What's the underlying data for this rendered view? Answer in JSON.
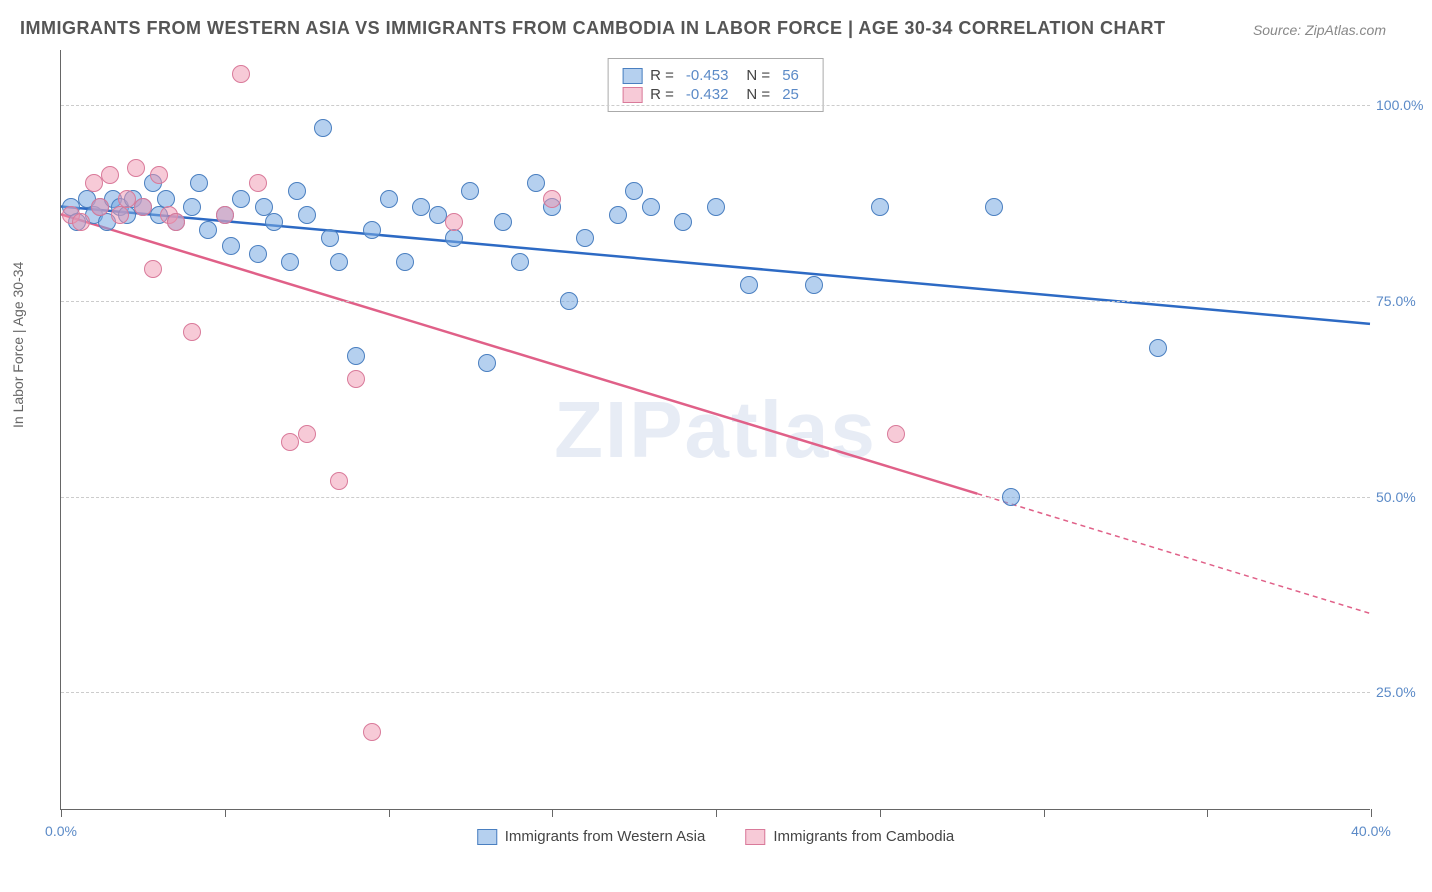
{
  "title": "IMMIGRANTS FROM WESTERN ASIA VS IMMIGRANTS FROM CAMBODIA IN LABOR FORCE | AGE 30-34 CORRELATION CHART",
  "source": "Source: ZipAtlas.com",
  "ylabel": "In Labor Force | Age 30-34",
  "watermark": "ZIPatlas",
  "chart": {
    "type": "scatter",
    "xlim": [
      0,
      40
    ],
    "ylim": [
      10,
      107
    ],
    "background_color": "#ffffff",
    "grid_color": "#cccccc",
    "x_ticks": [
      0,
      5,
      10,
      15,
      20,
      25,
      30,
      35,
      40
    ],
    "x_tick_labels": {
      "0": "0.0%",
      "40": "40.0%"
    },
    "y_grid": [
      25,
      50,
      75,
      100
    ],
    "y_tick_labels": {
      "25": "25.0%",
      "50": "50.0%",
      "75": "75.0%",
      "100": "100.0%"
    },
    "series": [
      {
        "name": "Immigrants from Western Asia",
        "fill_color": "rgba(120,170,225,0.55)",
        "stroke_color": "#4a7fc0",
        "line_color": "#2d6ac4",
        "R": "-0.453",
        "N": "56",
        "trend": {
          "x1": 0,
          "y1": 87,
          "x2": 40,
          "y2": 72,
          "dash_from_x": null
        },
        "points": [
          [
            0.3,
            87
          ],
          [
            0.5,
            85
          ],
          [
            0.8,
            88
          ],
          [
            1.0,
            86
          ],
          [
            1.2,
            87
          ],
          [
            1.4,
            85
          ],
          [
            1.6,
            88
          ],
          [
            1.8,
            87
          ],
          [
            2.0,
            86
          ],
          [
            2.2,
            88
          ],
          [
            2.5,
            87
          ],
          [
            2.8,
            90
          ],
          [
            3.0,
            86
          ],
          [
            3.2,
            88
          ],
          [
            3.5,
            85
          ],
          [
            4.0,
            87
          ],
          [
            4.2,
            90
          ],
          [
            4.5,
            84
          ],
          [
            5.0,
            86
          ],
          [
            5.2,
            82
          ],
          [
            5.5,
            88
          ],
          [
            6.0,
            81
          ],
          [
            6.2,
            87
          ],
          [
            6.5,
            85
          ],
          [
            7.0,
            80
          ],
          [
            7.2,
            89
          ],
          [
            7.5,
            86
          ],
          [
            8.0,
            97
          ],
          [
            8.2,
            83
          ],
          [
            8.5,
            80
          ],
          [
            9.0,
            68
          ],
          [
            9.5,
            84
          ],
          [
            10.0,
            88
          ],
          [
            10.5,
            80
          ],
          [
            11.0,
            87
          ],
          [
            11.5,
            86
          ],
          [
            12.0,
            83
          ],
          [
            12.5,
            89
          ],
          [
            13.0,
            67
          ],
          [
            13.5,
            85
          ],
          [
            14.0,
            80
          ],
          [
            14.5,
            90
          ],
          [
            15.0,
            87
          ],
          [
            15.5,
            75
          ],
          [
            16.0,
            83
          ],
          [
            17.0,
            86
          ],
          [
            17.5,
            89
          ],
          [
            18.0,
            87
          ],
          [
            19.0,
            85
          ],
          [
            20.0,
            87
          ],
          [
            21.0,
            77
          ],
          [
            23.0,
            77
          ],
          [
            25.0,
            87
          ],
          [
            28.5,
            87
          ],
          [
            29.0,
            50
          ],
          [
            33.5,
            69
          ]
        ]
      },
      {
        "name": "Immigrants from Cambodia",
        "fill_color": "rgba(240,150,175,0.5)",
        "stroke_color": "#d97a9a",
        "line_color": "#e06088",
        "R": "-0.432",
        "N": "25",
        "trend": {
          "x1": 0,
          "y1": 86,
          "x2": 40,
          "y2": 35,
          "dash_from_x": 28
        },
        "points": [
          [
            0.3,
            86
          ],
          [
            0.6,
            85
          ],
          [
            1.0,
            90
          ],
          [
            1.2,
            87
          ],
          [
            1.5,
            91
          ],
          [
            1.8,
            86
          ],
          [
            2.0,
            88
          ],
          [
            2.3,
            92
          ],
          [
            2.5,
            87
          ],
          [
            2.8,
            79
          ],
          [
            3.0,
            91
          ],
          [
            3.3,
            86
          ],
          [
            3.5,
            85
          ],
          [
            4.0,
            71
          ],
          [
            5.0,
            86
          ],
          [
            5.5,
            104
          ],
          [
            6.0,
            90
          ],
          [
            7.0,
            57
          ],
          [
            7.5,
            58
          ],
          [
            8.5,
            52
          ],
          [
            9.0,
            65
          ],
          [
            9.5,
            20
          ],
          [
            12.0,
            85
          ],
          [
            15.0,
            88
          ],
          [
            25.5,
            58
          ]
        ]
      }
    ]
  },
  "legend_top": {
    "r_label": "R =",
    "n_label": "N ="
  }
}
